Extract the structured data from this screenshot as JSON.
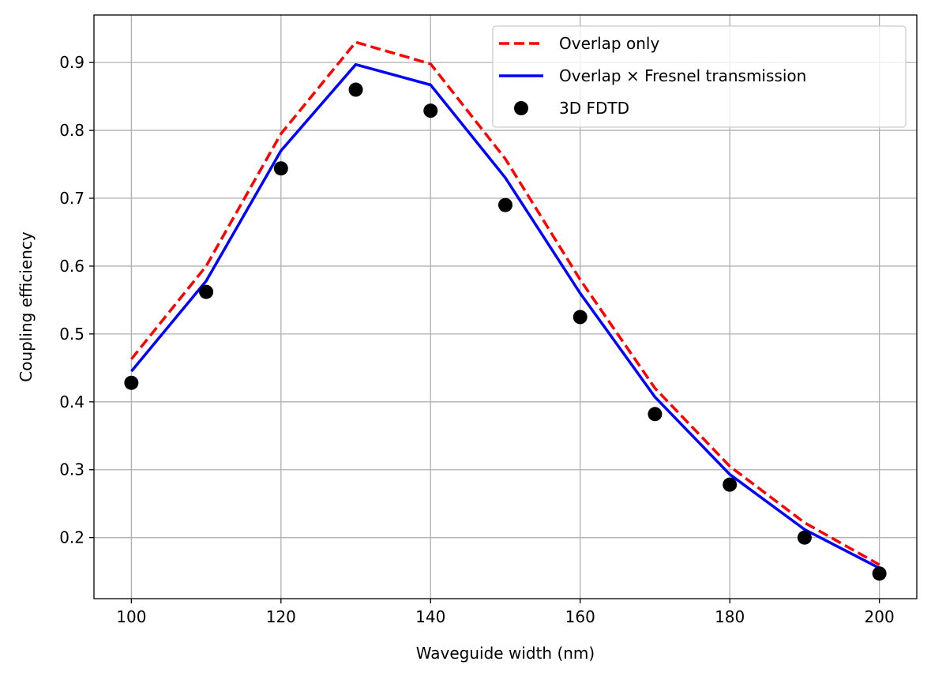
{
  "chart_data": {
    "type": "line",
    "title": "",
    "xlabel": "Waveguide width (nm)",
    "ylabel": "Coupling efficiency",
    "xlim": [
      95,
      205
    ],
    "ylim": [
      0.11,
      0.97
    ],
    "xticks": [
      100,
      120,
      140,
      160,
      180,
      200
    ],
    "yticks": [
      0.2,
      0.3,
      0.4,
      0.5,
      0.6,
      0.7,
      0.8,
      0.9
    ],
    "grid": true,
    "legend_position": "top-right",
    "x": [
      100,
      110,
      120,
      130,
      140,
      150,
      160,
      170,
      180,
      190,
      200
    ],
    "series": [
      {
        "name": "Overlap only",
        "style": "dashed-line",
        "color": "#ff0000",
        "values": [
          0.463,
          0.6,
          0.795,
          0.93,
          0.898,
          0.758,
          0.58,
          0.42,
          0.305,
          0.222,
          0.16
        ]
      },
      {
        "name": "Overlap × Fresnel transmission",
        "style": "solid-line",
        "color": "#0000ff",
        "values": [
          0.445,
          0.578,
          0.77,
          0.897,
          0.867,
          0.73,
          0.56,
          0.407,
          0.293,
          0.212,
          0.155
        ]
      },
      {
        "name": "3D FDTD",
        "style": "markers",
        "color": "#000000",
        "values": [
          0.428,
          0.562,
          0.744,
          0.86,
          0.829,
          0.69,
          0.525,
          0.382,
          0.278,
          0.2,
          0.147
        ]
      }
    ]
  }
}
